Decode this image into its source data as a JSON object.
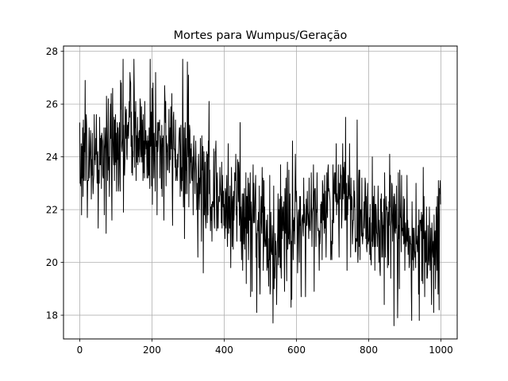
{
  "chart_data": {
    "type": "line",
    "title": "Mortes para Wumpus/Geração",
    "xlabel": "",
    "ylabel": "",
    "xlim": [
      -45,
      1045
    ],
    "ylim": [
      17.1,
      28.2
    ],
    "xticks": [
      0,
      200,
      400,
      600,
      800,
      1000
    ],
    "yticks": [
      18,
      20,
      22,
      24,
      26,
      28
    ],
    "xtick_labels": [
      "0",
      "200",
      "400",
      "600",
      "800",
      "1000"
    ],
    "ytick_labels": [
      "18",
      "20",
      "22",
      "24",
      "26",
      "28"
    ],
    "grid": true,
    "line_color": "#000000",
    "series": [
      {
        "x_start": 0,
        "x_step": 1,
        "count": 1000,
        "anchors": [
          [
            0,
            24.2
          ],
          [
            10,
            24.0
          ],
          [
            25,
            23.8
          ],
          [
            50,
            23.9
          ],
          [
            75,
            24.0
          ],
          [
            100,
            24.4
          ],
          [
            125,
            24.8
          ],
          [
            150,
            24.8
          ],
          [
            175,
            24.6
          ],
          [
            200,
            24.4
          ],
          [
            225,
            24.2
          ],
          [
            250,
            24.3
          ],
          [
            275,
            24.3
          ],
          [
            300,
            24.0
          ],
          [
            325,
            23.3
          ],
          [
            350,
            22.8
          ],
          [
            375,
            22.6
          ],
          [
            400,
            22.4
          ],
          [
            425,
            22.3
          ],
          [
            450,
            22.0
          ],
          [
            475,
            21.6
          ],
          [
            500,
            21.5
          ],
          [
            525,
            20.8
          ],
          [
            550,
            21.0
          ],
          [
            575,
            21.4
          ],
          [
            600,
            21.6
          ],
          [
            625,
            21.8
          ],
          [
            650,
            21.8
          ],
          [
            675,
            22.0
          ],
          [
            700,
            22.1
          ],
          [
            725,
            22.4
          ],
          [
            750,
            22.2
          ],
          [
            775,
            22.0
          ],
          [
            800,
            21.8
          ],
          [
            825,
            21.6
          ],
          [
            850,
            21.5
          ],
          [
            875,
            21.3
          ],
          [
            900,
            21.1
          ],
          [
            925,
            21.0
          ],
          [
            950,
            20.9
          ],
          [
            975,
            20.9
          ],
          [
            999,
            21.0
          ]
        ],
        "noise_sd": 1.2,
        "y_min": 17.6,
        "y_max": 27.7,
        "extremes": [
          [
            150,
            27.7
          ],
          [
            195,
            27.7
          ],
          [
            298,
            27.6
          ],
          [
            210,
            27.2
          ],
          [
            140,
            26.9
          ],
          [
            15,
            26.9
          ],
          [
            358,
            26.1
          ],
          [
            490,
            18.1
          ],
          [
            535,
            17.7
          ],
          [
            545,
            18.4
          ],
          [
            870,
            17.6
          ],
          [
            880,
            17.9
          ],
          [
            940,
            17.8
          ],
          [
            995,
            18.2
          ],
          [
            585,
            18.3
          ]
        ]
      }
    ]
  }
}
